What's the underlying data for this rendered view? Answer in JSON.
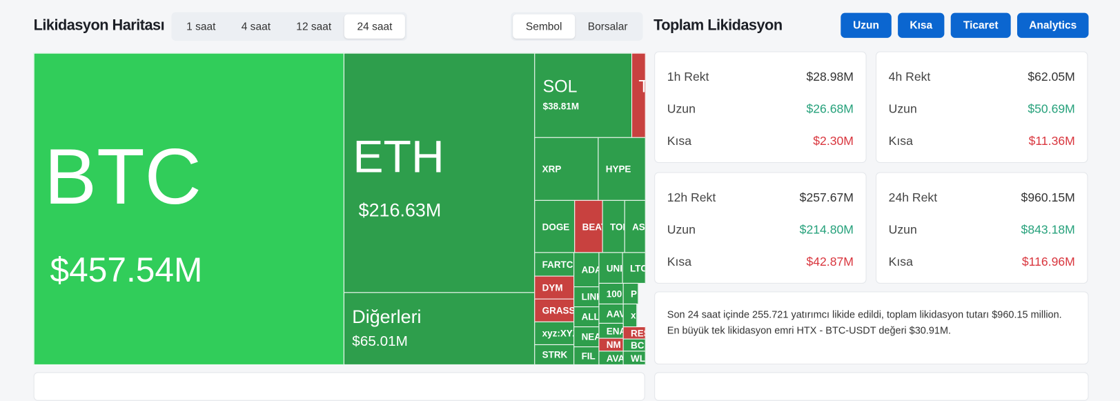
{
  "header": {
    "title": "Likidasyon Haritası",
    "timeframes": [
      "1 saat",
      "4 saat",
      "12 saat",
      "24 saat"
    ],
    "active_timeframe": 3,
    "views": [
      "Sembol",
      "Borsalar"
    ],
    "active_view": 0
  },
  "treemap": {
    "tiles": [
      {
        "label": "BTC",
        "value": "$457.54M",
        "color": "#31cd5a"
      },
      {
        "label": "ETH",
        "value": "$216.63M",
        "color": "#2e9e4c"
      },
      {
        "label": "Diğerleri",
        "value": "$65.01M",
        "color": "#2e9e4c"
      },
      {
        "label": "SOL",
        "value": "$38.81M",
        "color": "#2e9e4c"
      },
      {
        "label": "T",
        "color": "#c8413f"
      },
      {
        "label": "XRP",
        "color": "#2e9e4c"
      },
      {
        "label": "HYPE",
        "color": "#2e9e4c"
      },
      {
        "label": "DOGE",
        "color": "#2e9e4c"
      },
      {
        "label": "BEAT",
        "color": "#c8413f"
      },
      {
        "label": "TON",
        "color": "#2e9e4c"
      },
      {
        "label": "AS",
        "color": "#2e9e4c"
      },
      {
        "label": "FARTCO",
        "color": "#2e9e4c"
      },
      {
        "label": "DYM",
        "color": "#c8413f"
      },
      {
        "label": "GRASS",
        "color": "#c8413f"
      },
      {
        "label": "xyz:XYZ",
        "color": "#2e9e4c"
      },
      {
        "label": "STRK",
        "color": "#2e9e4c"
      },
      {
        "label": "ADA",
        "color": "#2e9e4c"
      },
      {
        "label": "UNI",
        "color": "#2e9e4c"
      },
      {
        "label": "LTC",
        "color": "#2e9e4c"
      },
      {
        "label": "LINK",
        "color": "#2e9e4c"
      },
      {
        "label": "ALLO",
        "color": "#2e9e4c"
      },
      {
        "label": "NEA",
        "color": "#2e9e4c"
      },
      {
        "label": "FIL",
        "color": "#2e9e4c"
      },
      {
        "label": "100",
        "color": "#2e9e4c"
      },
      {
        "label": "P",
        "color": "#2e9e4c"
      },
      {
        "label": "AAV",
        "color": "#2e9e4c"
      },
      {
        "label": "x",
        "color": "#2e9e4c"
      },
      {
        "label": "ENA",
        "color": "#2e9e4c"
      },
      {
        "label": "NM",
        "color": "#c8413f"
      },
      {
        "label": "AVA",
        "color": "#2e9e4c"
      },
      {
        "label": "RES",
        "color": "#c8413f"
      },
      {
        "label": "BC",
        "color": "#2e9e4c"
      },
      {
        "label": "WL",
        "color": "#2e9e4c"
      }
    ]
  },
  "panel": {
    "title": "Toplam Likidasyon",
    "buttons": [
      "Uzun",
      "Kısa",
      "Ticaret",
      "Analytics"
    ],
    "cards": [
      {
        "title": "1h Rekt",
        "total": "$28.98M",
        "long_label": "Uzun",
        "long": "$26.68M",
        "short_label": "Kısa",
        "short": "$2.30M"
      },
      {
        "title": "4h Rekt",
        "total": "$62.05M",
        "long_label": "Uzun",
        "long": "$50.69M",
        "short_label": "Kısa",
        "short": "$11.36M"
      },
      {
        "title": "12h Rekt",
        "total": "$257.67M",
        "long_label": "Uzun",
        "long": "$214.80M",
        "short_label": "Kısa",
        "short": "$42.87M"
      },
      {
        "title": "24h Rekt",
        "total": "$960.15M",
        "long_label": "Uzun",
        "long": "$843.18M",
        "short_label": "Kısa",
        "short": "$116.96M"
      }
    ],
    "summary": [
      "Son 24 saat içinde 255.721 yatırımcı likide edildi, toplam likidasyon tutarı $960.15 million.",
      "En büyük tek likidasyon emri HTX - BTC-USDT değeri $30.91M."
    ]
  }
}
